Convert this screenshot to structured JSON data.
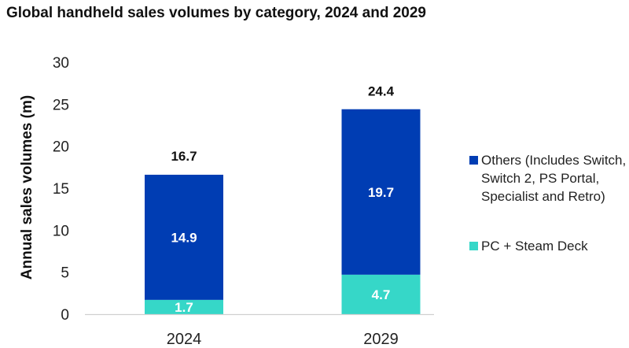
{
  "chart_data": {
    "type": "bar",
    "stacked": true,
    "title": "Global handheld sales volumes by category, 2024 and 2029",
    "xlabel": "",
    "ylabel": "Annual sales volumes (m)",
    "ylim": [
      0,
      30
    ],
    "yticks": [
      0,
      5,
      10,
      15,
      20,
      25,
      30
    ],
    "grid": false,
    "legend_position": "right",
    "categories": [
      "2024",
      "2029"
    ],
    "series": [
      {
        "name": "PC + Steam Deck",
        "color": "#36d7c8",
        "values": [
          1.7,
          4.7
        ]
      },
      {
        "name": "Others (Includes Switch, Switch 2, PS Portal, Specialist and Retro)",
        "color": "#003db3",
        "values": [
          14.9,
          19.7
        ]
      }
    ],
    "totals": [
      16.7,
      24.4
    ],
    "legend": [
      {
        "name": "Others (Includes Switch, Switch 2, PS Portal, Specialist and Retro)",
        "color": "#003db3"
      },
      {
        "name": "PC + Steam Deck",
        "color": "#36d7c8"
      }
    ]
  }
}
